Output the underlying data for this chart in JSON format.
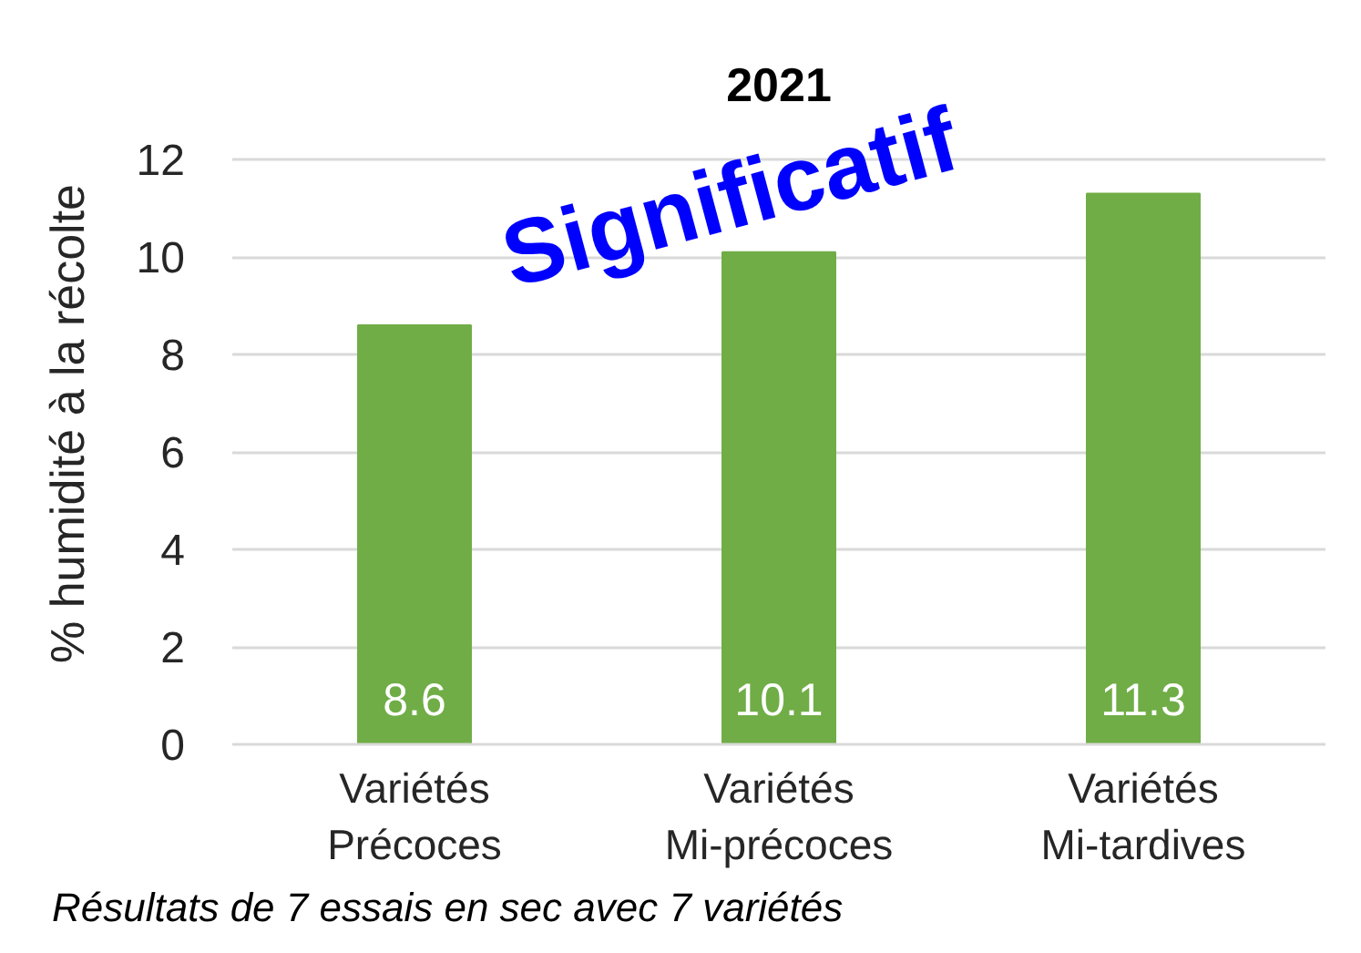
{
  "chart_data": {
    "type": "bar",
    "title": "2021",
    "ylabel": "% humidité à la récolte",
    "categories": [
      "Variétés\nPrécoces",
      "Variétés\nMi-précoces",
      "Variétés\nMi-tardives"
    ],
    "values": [
      8.6,
      10.1,
      11.3
    ],
    "color": "#70ad47",
    "ylim": [
      0,
      12
    ],
    "yticks": [
      0,
      2,
      4,
      6,
      8,
      10,
      12
    ],
    "grid": "y",
    "data_labels": true,
    "annotations": [
      "Significatif",
      "Résultats de 7 essais en sec avec 7 variétés"
    ]
  }
}
